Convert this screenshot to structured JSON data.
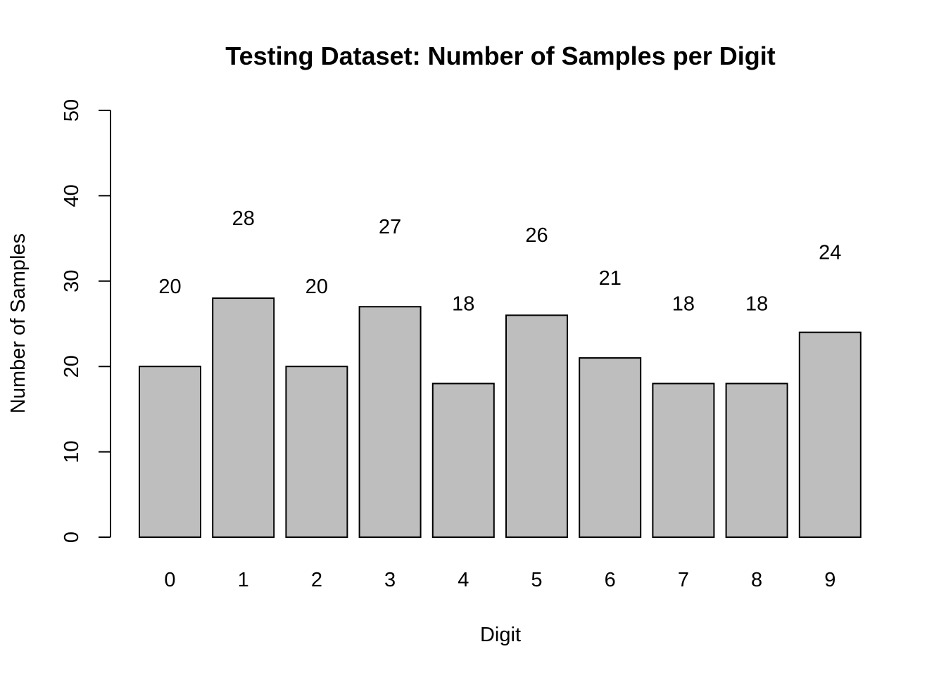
{
  "chart_data": {
    "type": "bar",
    "title": "Testing Dataset: Number of Samples per Digit",
    "xlabel": "Digit",
    "ylabel": "Number of Samples",
    "categories": [
      "0",
      "1",
      "2",
      "3",
      "4",
      "5",
      "6",
      "7",
      "8",
      "9"
    ],
    "values": [
      20,
      28,
      20,
      27,
      18,
      26,
      21,
      18,
      18,
      24
    ],
    "value_labels": [
      "20",
      "28",
      "20",
      "27",
      "18",
      "26",
      "21",
      "18",
      "18",
      "24"
    ],
    "ylim": [
      0,
      50
    ],
    "yticks": [
      0,
      10,
      20,
      30,
      40,
      50
    ],
    "ytick_labels": [
      "0",
      "10",
      "20",
      "30",
      "40",
      "50"
    ],
    "bar_color": "#bebebe",
    "bar_border_color": "#000000",
    "grid": false,
    "legend": "none"
  }
}
